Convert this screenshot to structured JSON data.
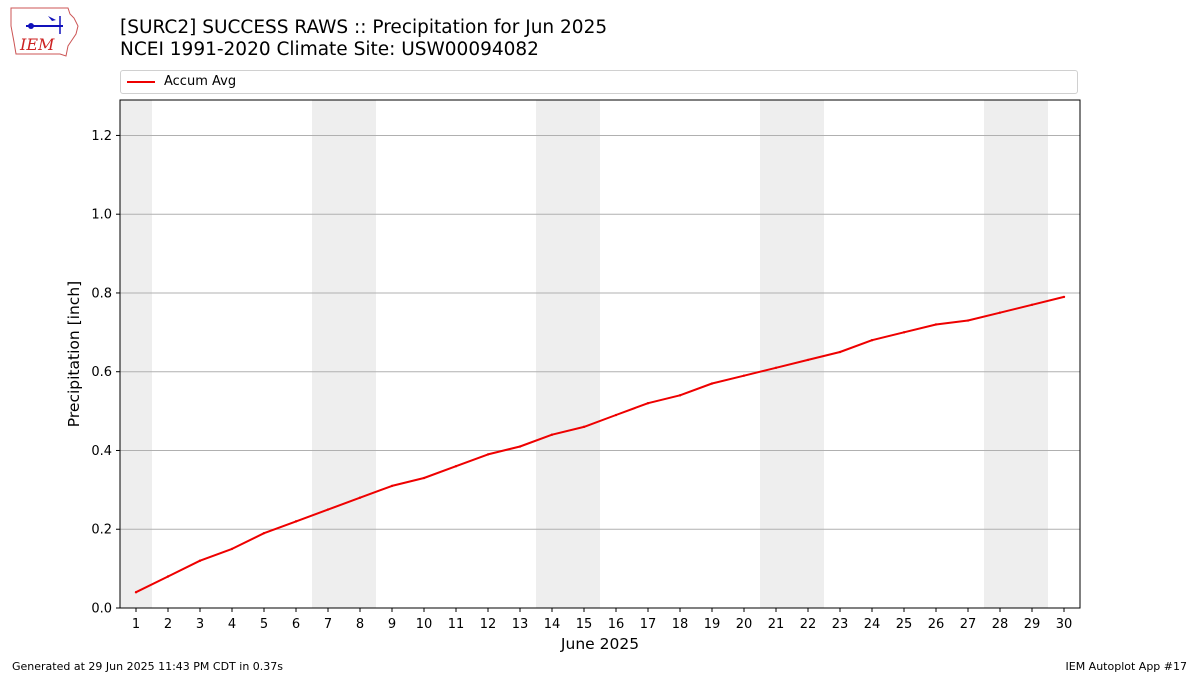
{
  "header": {
    "title_line1": "[SURC2] SUCCESS RAWS :: Precipitation for Jun 2025",
    "title_line2": "NCEI 1991-2020 Climate Site: USW00094082",
    "logo_text": "IEM"
  },
  "footer": {
    "left": "Generated at 29 Jun 2025 11:43 PM CDT in 0.37s",
    "right": "IEM Autoplot App #17"
  },
  "colors": {
    "line": "#ee0000",
    "weekend_band": "#eeeeee",
    "grid": "#b0b0b0"
  },
  "chart_data": {
    "type": "line",
    "title": "[SURC2] SUCCESS RAWS :: Precipitation for Jun 2025",
    "subtitle": "NCEI 1991-2020 Climate Site: USW00094082",
    "xlabel": "June 2025",
    "ylabel": "Precipitation [inch]",
    "xlim": [
      0.5,
      30.5
    ],
    "ylim": [
      0,
      1.29
    ],
    "yticks": [
      0.0,
      0.2,
      0.4,
      0.6,
      0.8,
      1.0,
      1.2
    ],
    "ytick_labels": [
      "0.0",
      "0.2",
      "0.4",
      "0.6",
      "0.8",
      "1.0",
      "1.2"
    ],
    "xticks": [
      1,
      2,
      3,
      4,
      5,
      6,
      7,
      8,
      9,
      10,
      11,
      12,
      13,
      14,
      15,
      16,
      17,
      18,
      19,
      20,
      21,
      22,
      23,
      24,
      25,
      26,
      27,
      28,
      29,
      30
    ],
    "grid": "horizontal",
    "legend_position": "top",
    "weekend_days": [
      1,
      7,
      8,
      14,
      15,
      21,
      22,
      28,
      29
    ],
    "series": [
      {
        "name": "Accum Avg",
        "x": [
          1,
          2,
          3,
          4,
          5,
          6,
          7,
          8,
          9,
          10,
          11,
          12,
          13,
          14,
          15,
          16,
          17,
          18,
          19,
          20,
          21,
          22,
          23,
          24,
          25,
          26,
          27,
          28,
          29,
          30
        ],
        "values": [
          0.04,
          0.08,
          0.12,
          0.15,
          0.19,
          0.22,
          0.25,
          0.28,
          0.31,
          0.33,
          0.36,
          0.39,
          0.41,
          0.44,
          0.46,
          0.49,
          0.52,
          0.54,
          0.57,
          0.59,
          0.61,
          0.63,
          0.65,
          0.68,
          0.7,
          0.72,
          0.73,
          0.75,
          0.77,
          0.79
        ]
      }
    ]
  }
}
